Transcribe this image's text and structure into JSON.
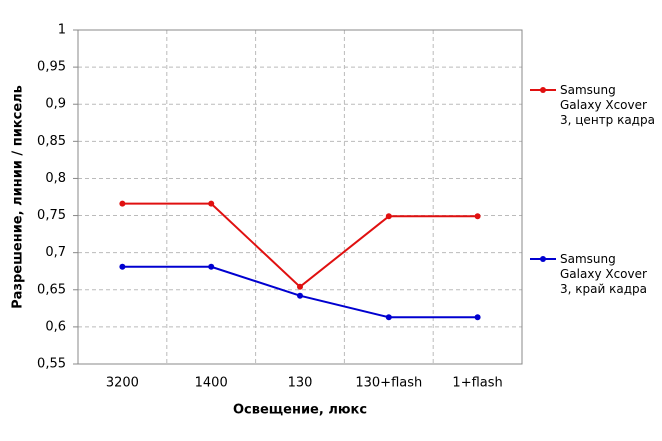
{
  "chart_data": {
    "type": "line",
    "y_label": "Разрешение,  линии / пиксель",
    "x_label": "Освещение,  люкс",
    "categories": [
      "3200",
      "1400",
      "130",
      "130+flash",
      "1+flash"
    ],
    "series": [
      {
        "name": "Samsung Galaxy Xcover 3, центр кадра",
        "color": "#e01010",
        "values": [
          0.766,
          0.766,
          0.654,
          0.749,
          0.749
        ]
      },
      {
        "name": "Samsung Galaxy Xcover 3, край кадра",
        "color": "#0000d0",
        "values": [
          0.681,
          0.681,
          0.642,
          0.613,
          0.613
        ]
      }
    ],
    "ylim": [
      0.55,
      1
    ],
    "yticks": [
      {
        "value": 0.55,
        "label": "0,55"
      },
      {
        "value": 0.6,
        "label": "0,6"
      },
      {
        "value": 0.65,
        "label": "0,65"
      },
      {
        "value": 0.7,
        "label": "0,7"
      },
      {
        "value": 0.75,
        "label": "0,75"
      },
      {
        "value": 0.8,
        "label": "0,8"
      },
      {
        "value": 0.85,
        "label": "0,85"
      },
      {
        "value": 0.9,
        "label": "0,9"
      },
      {
        "value": 0.95,
        "label": "0,95"
      },
      1
    ],
    "grid": true,
    "legend": "right"
  }
}
